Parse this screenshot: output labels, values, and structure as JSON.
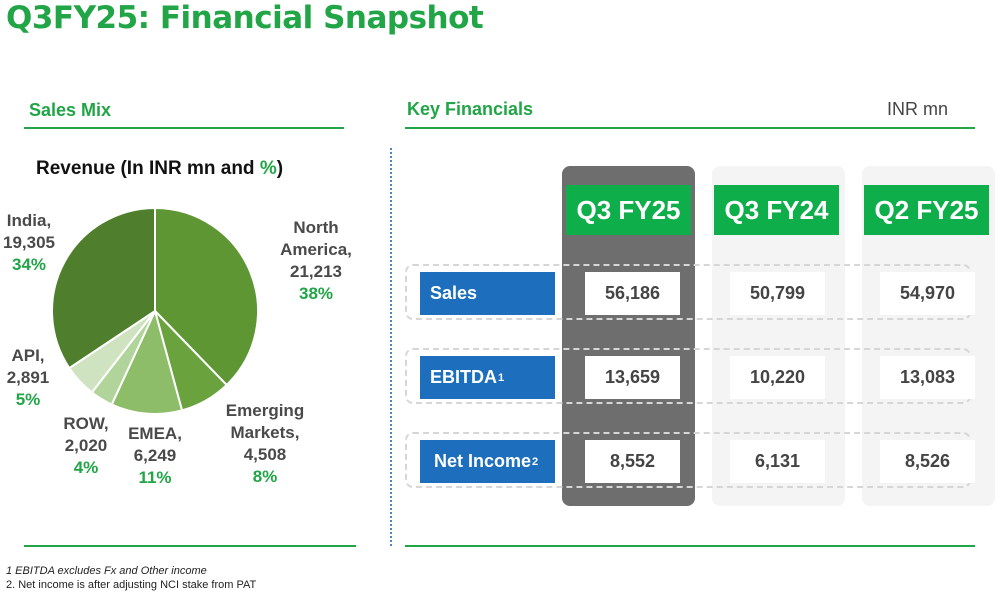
{
  "title": "Q3FY25: Financial Snapshot",
  "sales_mix": {
    "heading": "Sales Mix"
  },
  "key_financials": {
    "heading": "Key Financials",
    "unit": "INR mn"
  },
  "chart_data": [
    {
      "type": "pie",
      "title_prefix": "Revenue (In INR mn and ",
      "title_pct": "%",
      "title_suffix": ")",
      "slices": [
        {
          "label": "North America,",
          "value": "21,213",
          "pct": "38%",
          "num": 21213,
          "color": "#5e9634"
        },
        {
          "label": "Emerging Markets,",
          "value": "4,508",
          "pct": "8%",
          "num": 4508,
          "color": "#6aa33e"
        },
        {
          "label": "EMEA,",
          "value": "6,249",
          "pct": "11%",
          "num": 6249,
          "color": "#8ebd6a"
        },
        {
          "label": "ROW,",
          "value": "2,020",
          "pct": "4%",
          "num": 2020,
          "color": "#b1d49a"
        },
        {
          "label": "API,",
          "value": "2,891",
          "pct": "5%",
          "num": 2891,
          "color": "#cfe3c1"
        },
        {
          "label": "India,",
          "value": "19,305",
          "pct": "34%",
          "num": 19305,
          "color": "#4f7f2d"
        }
      ]
    },
    {
      "type": "table",
      "columns": [
        "Q3 FY25",
        "Q3 FY24",
        "Q2 FY25"
      ],
      "rows": [
        {
          "label": "Sales",
          "sup": "",
          "values": [
            "56,186",
            "50,799",
            "54,970"
          ]
        },
        {
          "label": "EBITDA",
          "sup": "1",
          "values": [
            "13,659",
            "10,220",
            "13,083"
          ]
        },
        {
          "label": "Net Income",
          "sup": "2",
          "values": [
            "8,552",
            "6,131",
            "8,526"
          ]
        }
      ]
    }
  ],
  "footnotes": [
    "1 EBITDA excludes Fx and Other income",
    "2. Net income is after adjusting NCI stake from PAT"
  ],
  "colors": {
    "accent_green": "#21a546",
    "header_green": "#0eae4b",
    "label_blue": "#1d6fbd",
    "highlight_gray": "#6e6e6e"
  }
}
